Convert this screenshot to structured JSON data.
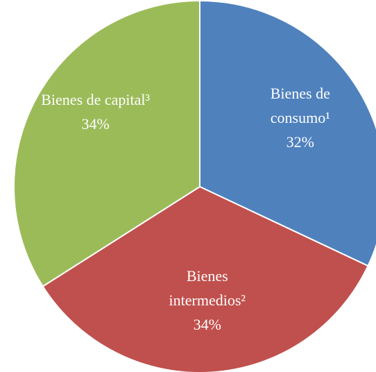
{
  "chart_data": {
    "type": "pie",
    "categories": [
      "Bienes de consumo¹",
      "Bienes intermedios²",
      "Bienes de capital³"
    ],
    "values": [
      32,
      34,
      34
    ],
    "value_labels": [
      "32%",
      "34%",
      "34%"
    ],
    "colors": [
      "#4f81bd",
      "#c0504d",
      "#9bbb59"
    ]
  }
}
